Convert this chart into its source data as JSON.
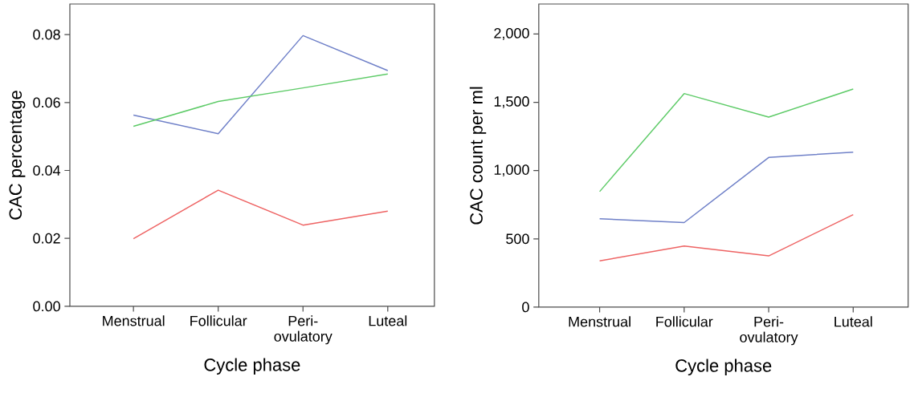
{
  "chart_data": [
    {
      "type": "line",
      "xlabel": "Cycle phase",
      "ylabel": "CAC percentage",
      "categories": [
        "Menstrual",
        "Follicular",
        "Peri-ovulatory",
        "Luteal"
      ],
      "ylim": [
        0,
        0.089
      ],
      "yticks": [
        {
          "value": 0,
          "label": "0.00"
        },
        0.02,
        0.04,
        0.06,
        0.08
      ],
      "series": [
        {
          "color": "#6f80c8",
          "values": [
            0.0563,
            0.0508,
            0.0797,
            0.0694
          ]
        },
        {
          "color": "#5ecb68",
          "values": [
            0.053,
            0.0603,
            0.0643,
            0.0684
          ]
        },
        {
          "color": "#ee6363",
          "values": [
            0.0199,
            0.0342,
            0.0239,
            0.028
          ]
        }
      ]
    },
    {
      "type": "line",
      "xlabel": "Cycle phase",
      "ylabel": "CAC count per ml",
      "categories": [
        "Menstrual",
        "Follicular",
        "Peri-ovulatory",
        "Luteal"
      ],
      "ylim": [
        0,
        2220
      ],
      "yticks": [
        0,
        500,
        {
          "value": 1000,
          "label": "1,000"
        },
        {
          "value": 1500,
          "label": "1,500"
        },
        {
          "value": 2000,
          "label": "2,000"
        }
      ],
      "series": [
        {
          "color": "#6f80c8",
          "values": [
            647,
            619,
            1096,
            1135
          ]
        },
        {
          "color": "#5ecb68",
          "values": [
            846,
            1564,
            1392,
            1597
          ]
        },
        {
          "color": "#ee6363",
          "values": [
            339,
            447,
            375,
            677
          ]
        }
      ]
    }
  ]
}
